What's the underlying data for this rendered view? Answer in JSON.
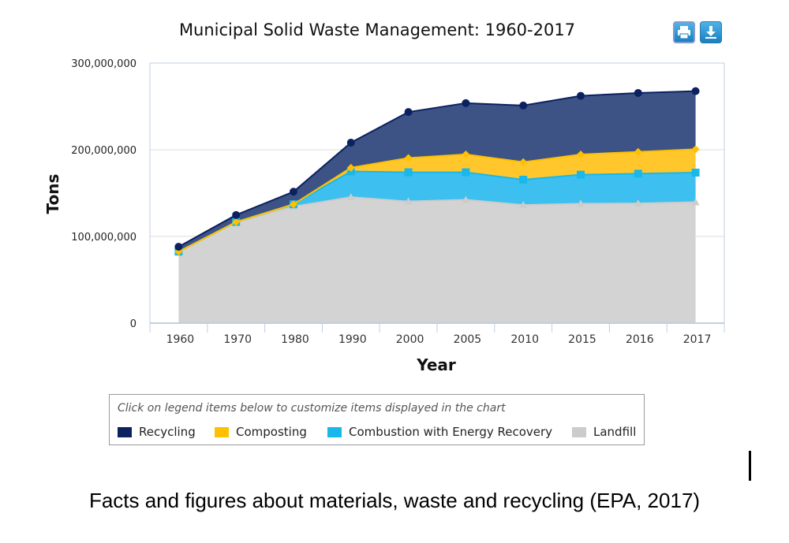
{
  "chart_data": {
    "type": "area",
    "stacked": true,
    "title": "Municipal Solid Waste Management: 1960-2017",
    "xlabel": "Year",
    "ylabel": "Tons",
    "categories": [
      "1960",
      "1970",
      "1980",
      "1990",
      "2000",
      "2005",
      "2010",
      "2015",
      "2016",
      "2017"
    ],
    "yticks": [
      "0",
      "100,000,000",
      "200,000,000",
      "300,000,000"
    ],
    "ylim": [
      0,
      300000000
    ],
    "grid": true,
    "legend_placement": "bottom",
    "legend_hint": "Click on legend items below to customize items displayed in the chart",
    "series": [
      {
        "name": "Landfill",
        "color": "#cccccc",
        "marker": "triangle",
        "values": [
          82500000,
          116300000,
          134400000,
          145300000,
          140300000,
          142300000,
          136200000,
          137700000,
          138100000,
          139600000
        ]
      },
      {
        "name": "Combustion with Energy Recovery",
        "color": "#1ab7ea",
        "marker": "square",
        "values": [
          0,
          400000,
          2700000,
          29700000,
          33700000,
          31700000,
          29300000,
          33500000,
          34300000,
          34000000
        ]
      },
      {
        "name": "Composting",
        "color": "#ffc000",
        "marker": "diamond",
        "values": [
          0,
          0,
          0,
          4200000,
          16500000,
          20600000,
          20200000,
          23400000,
          25100000,
          27000000
        ]
      },
      {
        "name": "Recycling",
        "color": "#0b2160",
        "marker": "circle",
        "values": [
          5600000,
          8000000,
          14500000,
          29000000,
          53000000,
          59200000,
          65300000,
          67600000,
          68000000,
          67000000
        ]
      }
    ]
  },
  "legend_order": [
    "Recycling",
    "Composting",
    "Combustion with Energy Recovery",
    "Landfill"
  ],
  "toolbar": {
    "print_icon": "printer-icon",
    "download_icon": "download-icon"
  },
  "caption": "Facts and figures about materials, waste and recycling (EPA, 2017)"
}
